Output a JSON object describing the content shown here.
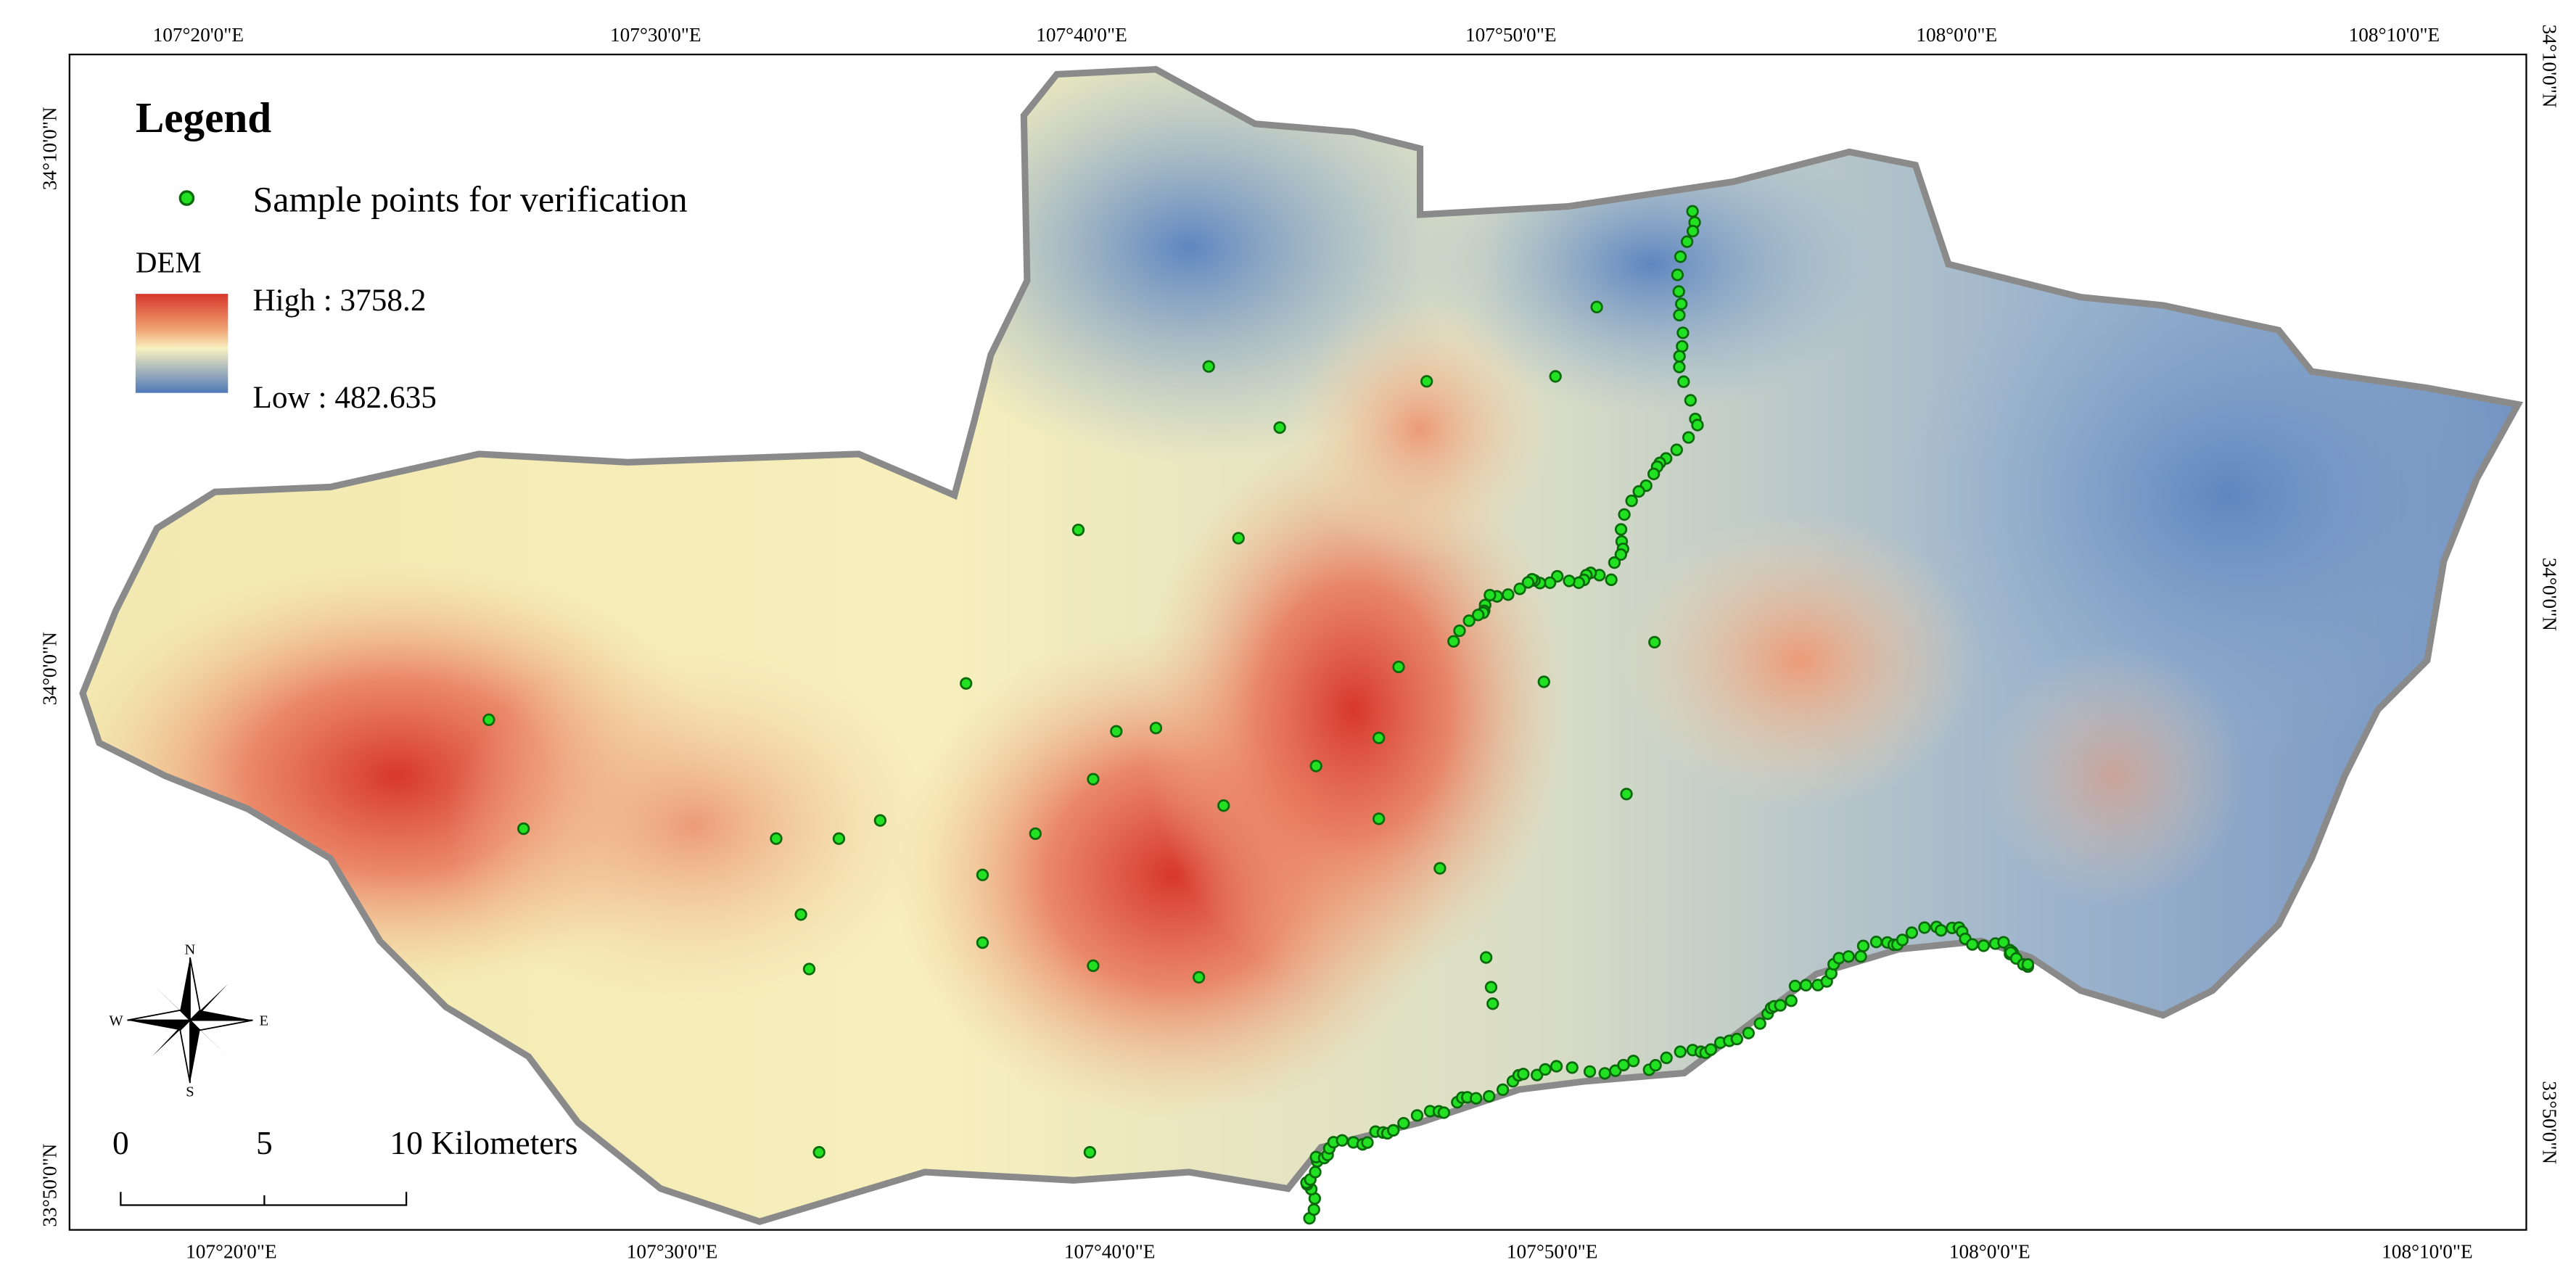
{
  "map": {
    "graticule": {
      "top": [
        "107°20'0\"E",
        "107°30'0\"E",
        "107°40'0\"E",
        "107°50'0\"E",
        "108°0'0\"E",
        "108°10'0\"E"
      ],
      "bottom": [
        "107°20'0\"E",
        "107°30'0\"E",
        "107°40'0\"E",
        "107°50'0\"E",
        "108°0'0\"E",
        "108°10'0\"E"
      ],
      "left": [
        "34°10'0\"N",
        "34°0'0\"N",
        "33°50'0\"N"
      ],
      "right": [
        "34°10'0\"N",
        "34°0'0\"N",
        "33°50'0\"N"
      ]
    },
    "legend": {
      "title": "Legend",
      "points_label": "Sample points for verification",
      "dem_title": "DEM",
      "high": "High : 3758.2",
      "low": "Low : 482.635"
    },
    "north_arrow": {
      "n": "N",
      "s": "S",
      "e": "E",
      "w": "W"
    },
    "scale_bar": {
      "labels": [
        "0",
        "5",
        "10 Kilometers"
      ]
    }
  }
}
